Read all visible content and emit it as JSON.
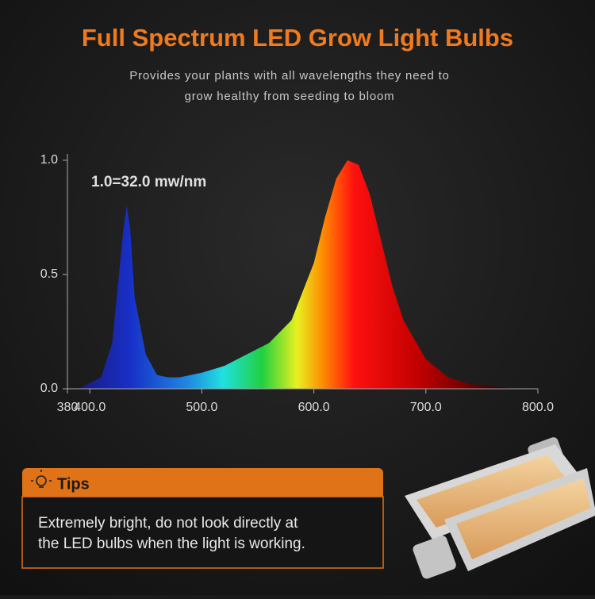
{
  "chart_data": {
    "type": "area",
    "title": "Full Spectrum LED Grow Light Bulbs",
    "subtitle": [
      "Provides your plants with all wavelengths they need to",
      "grow healthy from seeding to bloom"
    ],
    "annotation": "1.0=32.0 mw/nm",
    "x": [
      390,
      410,
      420,
      425,
      430,
      433,
      436,
      440,
      450,
      460,
      470,
      480,
      500,
      520,
      540,
      560,
      580,
      600,
      610,
      620,
      630,
      640,
      650,
      660,
      670,
      680,
      700,
      720,
      740,
      760,
      780
    ],
    "values": [
      0,
      0.05,
      0.2,
      0.45,
      0.7,
      0.8,
      0.7,
      0.4,
      0.15,
      0.06,
      0.05,
      0.05,
      0.07,
      0.1,
      0.15,
      0.2,
      0.3,
      0.55,
      0.75,
      0.92,
      1.0,
      0.98,
      0.85,
      0.65,
      0.45,
      0.3,
      0.13,
      0.05,
      0.02,
      0.01,
      0
    ],
    "xlim": [
      380,
      800
    ],
    "xticks": [
      380,
      {
        "value": 400,
        "label": "400.0"
      },
      {
        "value": 500,
        "label": "500.0"
      },
      {
        "value": 600,
        "label": "600.0"
      },
      {
        "value": 700,
        "label": "700.0"
      },
      {
        "value": 800,
        "label": "800.0"
      }
    ],
    "ylim": [
      0,
      1
    ],
    "yticks": [
      {
        "value": 0,
        "label": "0.0"
      },
      0.5,
      {
        "value": 1,
        "label": "1.0"
      }
    ]
  },
  "tips": {
    "title": "Tips",
    "text": [
      "Extremely bright, do not look directly at",
      "the LED bulbs when the light is working."
    ]
  }
}
